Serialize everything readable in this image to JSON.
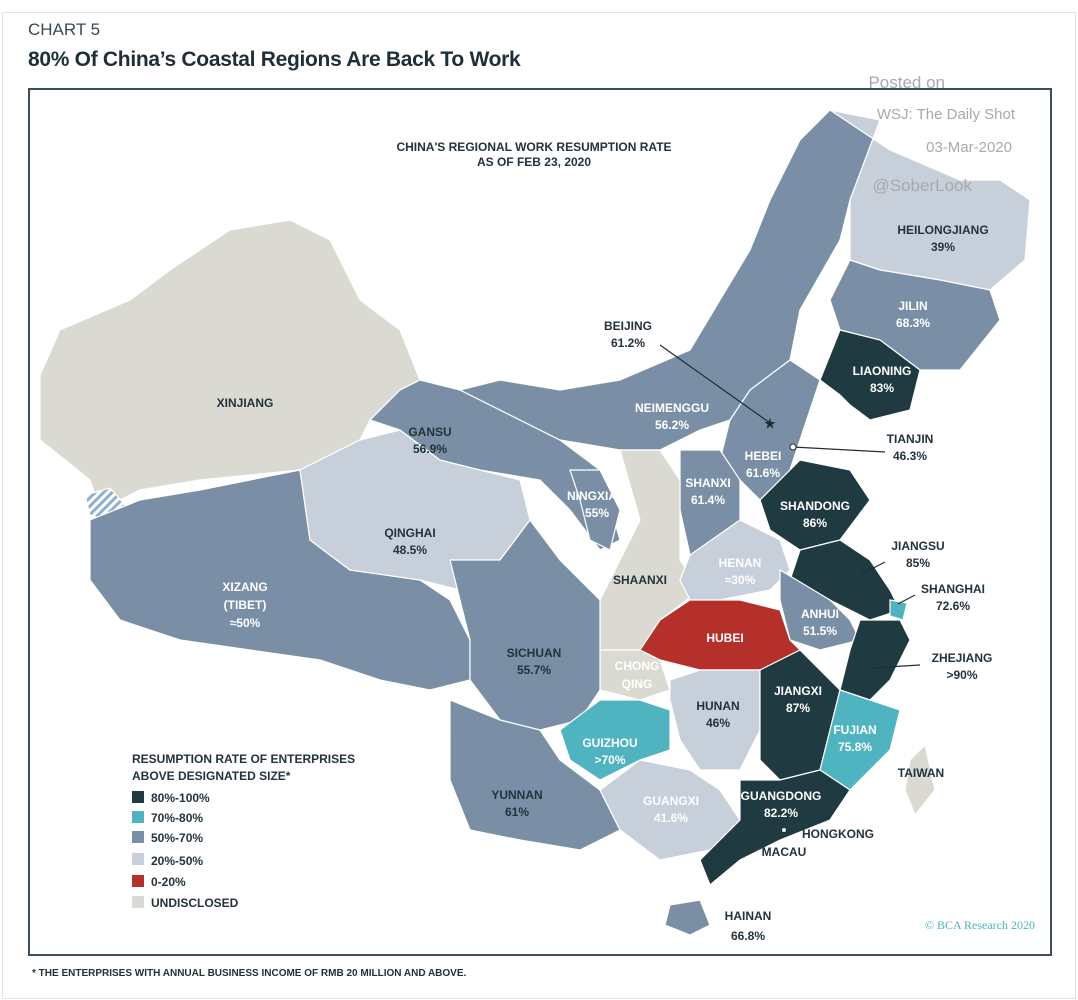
{
  "header": {
    "kicker": "CHART 5",
    "title": "80% Of China’s Coastal Regions Are Back To Work"
  },
  "map": {
    "title_line1": "CHINA'S REGIONAL WORK RESUMPTION RATE",
    "title_line2": "AS OF FEB 23, 2020",
    "colors": {
      "80-100": "#1f3a40",
      "70-80": "#4fb3c0",
      "50-70": "#7a8fa6",
      "20-50": "#c7d0da",
      "0-20": "#b5302a",
      "undisclosed": "#dbdad2"
    },
    "regions": {
      "xinjiang": {
        "name": "XINJIANG",
        "value": "",
        "category": "undisclosed"
      },
      "xizang": {
        "name": "XIZANG",
        "name2": "(TIBET)",
        "value": "≈50%",
        "category": "50-70"
      },
      "qinghai": {
        "name": "QINGHAI",
        "value": "48.5%",
        "category": "20-50"
      },
      "gansu": {
        "name": "GANSU",
        "value": "56.9%",
        "category": "50-70"
      },
      "neimenggu": {
        "name": "NEIMENGGU",
        "value": "56.2%",
        "category": "50-70"
      },
      "heilongjiang": {
        "name": "HEILONGJIANG",
        "value": "39%",
        "category": "20-50"
      },
      "jilin": {
        "name": "JILIN",
        "value": "68.3%",
        "category": "50-70"
      },
      "liaoning": {
        "name": "LIAONING",
        "value": "83%",
        "category": "80-100"
      },
      "beijing": {
        "name": "BEIJING",
        "value": "61.2%",
        "category": "50-70"
      },
      "tianjin": {
        "name": "TIANJIN",
        "value": "46.3%",
        "category": "20-50"
      },
      "hebei": {
        "name": "HEBEI",
        "value": "61.6%",
        "category": "50-70"
      },
      "shanxi": {
        "name": "SHANXI",
        "value": "61.4%",
        "category": "50-70"
      },
      "ningxia": {
        "name": "NINGXIA",
        "value": "55%",
        "category": "50-70"
      },
      "shaanxi": {
        "name": "SHAANXI",
        "value": "",
        "category": "undisclosed"
      },
      "shandong": {
        "name": "SHANDONG",
        "value": "86%",
        "category": "80-100"
      },
      "henan": {
        "name": "HENAN",
        "value": "≈30%",
        "category": "20-50"
      },
      "jiangsu": {
        "name": "JIANGSU",
        "value": "85%",
        "category": "80-100"
      },
      "shanghai": {
        "name": "SHANGHAI",
        "value": "72.6%",
        "category": "70-80"
      },
      "anhui": {
        "name": "ANHUI",
        "value": "51.5%",
        "category": "50-70"
      },
      "hubei": {
        "name": "HUBEI",
        "value": "",
        "category": "0-20"
      },
      "zhejiang": {
        "name": "ZHEJIANG",
        "value": ">90%",
        "category": "80-100"
      },
      "chongqing": {
        "name": "CHONG",
        "name2": "QING",
        "value": "",
        "category": "undisclosed"
      },
      "sichuan": {
        "name": "SICHUAN",
        "value": "55.7%",
        "category": "50-70"
      },
      "hunan": {
        "name": "HUNAN",
        "value": "46%",
        "category": "20-50"
      },
      "jiangxi": {
        "name": "JIANGXI",
        "value": "87%",
        "category": "80-100"
      },
      "fujian": {
        "name": "FUJIAN",
        "value": "75.8%",
        "category": "70-80"
      },
      "guizhou": {
        "name": "GUIZHOU",
        "value": ">70%",
        "category": "70-80"
      },
      "yunnan": {
        "name": "YUNNAN",
        "value": "61%",
        "category": "50-70"
      },
      "guangxi": {
        "name": "GUANGXI",
        "value": "41.6%",
        "category": "20-50"
      },
      "guangdong": {
        "name": "GUANGDONG",
        "value": "82.2%",
        "category": "80-100"
      },
      "hongkong": {
        "name": "HONGKONG",
        "value": "",
        "category": ""
      },
      "macau": {
        "name": "MACAU",
        "value": "",
        "category": ""
      },
      "hainan": {
        "name": "HAINAN",
        "value": "66.8%",
        "category": "50-70"
      },
      "taiwan": {
        "name": "TAIWAN",
        "value": "",
        "category": "undisclosed"
      }
    }
  },
  "legend": {
    "title_line1": "RESUMPTION RATE OF ENTERPRISES",
    "title_line2": "ABOVE DESIGNATED SIZE*",
    "items": [
      "80%-100%",
      "70%-80%",
      "50%-70%",
      "20%-50%",
      "0-20%",
      "UNDISCLOSED"
    ]
  },
  "watermark": {
    "line1": "Posted on",
    "line2": "WSJ: The Daily Shot",
    "line3": "03-Mar-2020",
    "line4": "@SoberLook"
  },
  "copyright": "© BCA Research 2020",
  "footnote": "* THE ENTERPRISES WITH ANNUAL BUSINESS INCOME OF RMB 20 MILLION AND ABOVE."
}
